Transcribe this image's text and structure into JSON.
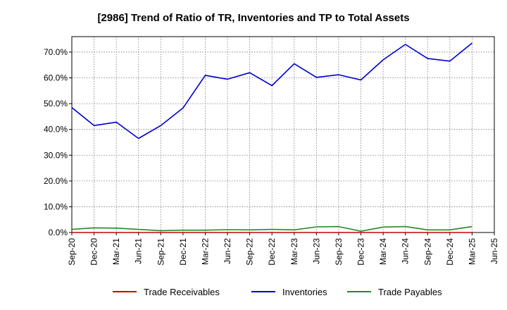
{
  "chart_data": {
    "type": "line",
    "title": "[2986]  Trend of Ratio of TR, Inventories and TP to Total Assets",
    "xlabel": "",
    "ylabel": "",
    "x_ticks": [
      "Sep-20",
      "Dec-20",
      "Mar-21",
      "Jun-21",
      "Sep-21",
      "Dec-21",
      "Mar-22",
      "Jun-22",
      "Sep-22",
      "Dec-22",
      "Mar-23",
      "Jun-23",
      "Sep-23",
      "Dec-23",
      "Mar-24",
      "Jun-24",
      "Sep-24",
      "Dec-24",
      "Mar-25",
      "Jun-25"
    ],
    "y_ticks": [
      "0.0%",
      "10.0%",
      "20.0%",
      "30.0%",
      "40.0%",
      "50.0%",
      "60.0%",
      "70.0%"
    ],
    "ylim": [
      0,
      76
    ],
    "grid": true,
    "legend_position": "bottom",
    "x": [
      "Dec-20",
      "Mar-21",
      "Jun-21",
      "Sep-21",
      "Dec-21",
      "Mar-22",
      "Jun-22",
      "Sep-22",
      "Dec-22",
      "Mar-23",
      "Jun-23",
      "Sep-23",
      "Dec-23",
      "Mar-24",
      "Jun-24",
      "Sep-24",
      "Dec-24",
      "Mar-25"
    ],
    "series_points": [
      {
        "name": "Trade Receivables",
        "color": "#cc0000",
        "points": [
          [
            "Sep-20",
            0.0
          ],
          [
            "Dec-20",
            0.0
          ],
          [
            "Mar-21",
            0.0
          ],
          [
            "Jun-21",
            0.0
          ],
          [
            "Sep-21",
            0.0
          ],
          [
            "Dec-21",
            0.0
          ],
          [
            "Mar-22",
            0.0
          ],
          [
            "Jun-22",
            0.0
          ],
          [
            "Sep-22",
            0.0
          ],
          [
            "Dec-22",
            0.0
          ],
          [
            "Mar-23",
            0.0
          ],
          [
            "Jun-23",
            0.0
          ],
          [
            "Sep-23",
            0.0
          ],
          [
            "Dec-23",
            0.0
          ],
          [
            "Mar-24",
            0.0
          ],
          [
            "Jun-24",
            0.0
          ],
          [
            "Sep-24",
            0.0
          ],
          [
            "Dec-24",
            0.0
          ],
          [
            "Mar-25",
            0.0
          ]
        ]
      },
      {
        "name": "Inventories",
        "color": "#0000cc",
        "points": [
          [
            "Sep-20",
            48.5
          ],
          [
            "Dec-20",
            41.5
          ],
          [
            "Mar-21",
            42.8
          ],
          [
            "Jun-21",
            36.5
          ],
          [
            "Sep-21",
            41.5
          ],
          [
            "Dec-21",
            48.3
          ],
          [
            "Mar-22",
            61.0
          ],
          [
            "Jun-22",
            59.5
          ],
          [
            "Sep-22",
            62.0
          ],
          [
            "Dec-22",
            57.0
          ],
          [
            "Mar-23",
            65.5
          ],
          [
            "Jun-23",
            60.2
          ],
          [
            "Sep-23",
            61.2
          ],
          [
            "Dec-23",
            59.2
          ],
          [
            "Mar-24",
            67.0
          ],
          [
            "Jun-24",
            73.0
          ],
          [
            "Sep-24",
            67.5
          ],
          [
            "Dec-24",
            66.5
          ],
          [
            "Mar-25",
            73.5
          ]
        ]
      },
      {
        "name": "Trade Payables",
        "color": "#228b22",
        "points": [
          [
            "Sep-20",
            1.2
          ],
          [
            "Dec-20",
            1.8
          ],
          [
            "Mar-21",
            1.7
          ],
          [
            "Jun-21",
            1.2
          ],
          [
            "Sep-21",
            0.7
          ],
          [
            "Dec-21",
            0.9
          ],
          [
            "Mar-22",
            0.9
          ],
          [
            "Jun-22",
            1.1
          ],
          [
            "Sep-22",
            1.0
          ],
          [
            "Dec-22",
            1.2
          ],
          [
            "Mar-23",
            1.0
          ],
          [
            "Jun-23",
            2.2
          ],
          [
            "Sep-23",
            2.3
          ],
          [
            "Dec-23",
            0.5
          ],
          [
            "Mar-24",
            2.1
          ],
          [
            "Jun-24",
            2.3
          ],
          [
            "Sep-24",
            1.0
          ],
          [
            "Dec-24",
            1.0
          ],
          [
            "Mar-25",
            2.3
          ]
        ]
      }
    ],
    "legend": [
      {
        "name": "Trade Receivables",
        "color": "#cc0000"
      },
      {
        "name": "Inventories",
        "color": "#0000cc"
      },
      {
        "name": "Trade Payables",
        "color": "#228b22"
      }
    ]
  }
}
